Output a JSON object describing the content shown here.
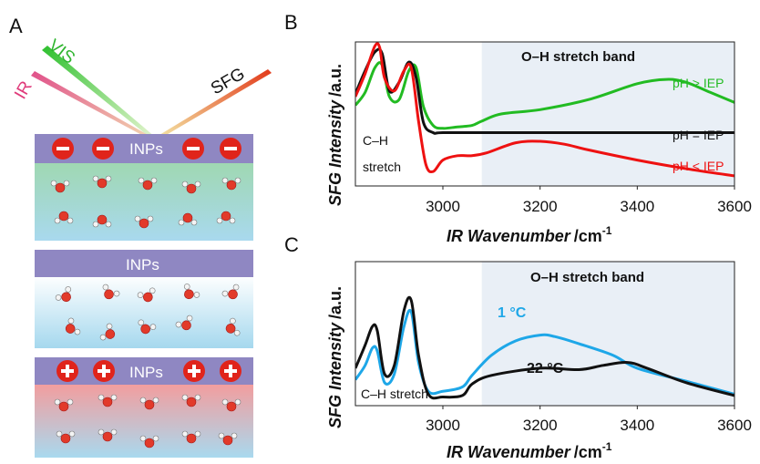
{
  "panel_a": {
    "label": "A",
    "beams": {
      "vis": "VIS",
      "ir": "IR",
      "sfg": "SFG"
    },
    "blocks": [
      {
        "label": "INPs",
        "charge": "−",
        "charge_symbol": "minus"
      },
      {
        "label": "INPs",
        "charge": "neutral",
        "charge_symbol": "none"
      },
      {
        "label": "INPs",
        "charge": "+",
        "charge_symbol": "plus"
      }
    ],
    "colors": {
      "inp_bar": "#8f87c2",
      "neg_water": "#9fd8b8",
      "neutral_water": "#b9e0ef",
      "pos_water": "#f4a9a9",
      "charge_circle": "#e0241b"
    }
  },
  "panel_b": {
    "label": "B",
    "band_label": "O–H stretch band",
    "ch_label_line1": "C–H",
    "ch_label_line2": "stretch"
  },
  "panel_c": {
    "label": "C",
    "band_label": "O–H stretch band",
    "ch_label": "C–H stretch"
  },
  "chart_data": [
    {
      "type": "line",
      "panel": "B",
      "ylabel_main": "SFG Intensity",
      "ylabel_unit": "/a.u.",
      "xlabel_main": "IR Wavenumber",
      "xlabel_unit": "/cm",
      "xlabel_sup": "-1",
      "xlim": [
        2820,
        3600
      ],
      "ylim": [
        0,
        1
      ],
      "xticks": [
        3000,
        3200,
        3400,
        3600
      ],
      "shaded_region": [
        3080,
        3600
      ],
      "grid": false,
      "series": [
        {
          "name": "pH > IEP",
          "color": "#22bb22",
          "x": [
            2820,
            2840,
            2860,
            2875,
            2890,
            2910,
            2930,
            2945,
            2960,
            2980,
            3000,
            3030,
            3060,
            3080,
            3120,
            3200,
            3300,
            3400,
            3460,
            3500,
            3550,
            3600
          ],
          "y": [
            0.56,
            0.65,
            0.82,
            0.84,
            0.62,
            0.6,
            0.8,
            0.82,
            0.55,
            0.42,
            0.4,
            0.41,
            0.42,
            0.45,
            0.5,
            0.53,
            0.6,
            0.71,
            0.74,
            0.72,
            0.65,
            0.58
          ]
        },
        {
          "name": "pH = IEP",
          "color": "#111111",
          "x": [
            2820,
            2840,
            2860,
            2875,
            2890,
            2910,
            2930,
            2945,
            2960,
            2980,
            3000,
            3100,
            3300,
            3500,
            3600
          ],
          "y": [
            0.64,
            0.8,
            0.93,
            0.92,
            0.66,
            0.72,
            0.86,
            0.75,
            0.44,
            0.37,
            0.37,
            0.37,
            0.37,
            0.37,
            0.37
          ]
        },
        {
          "name": "pH < IEP",
          "color": "#ee1111",
          "x": [
            2820,
            2840,
            2860,
            2870,
            2880,
            2900,
            2920,
            2935,
            2950,
            2965,
            2980,
            3000,
            3030,
            3060,
            3090,
            3150,
            3200,
            3250,
            3300,
            3400,
            3500,
            3600
          ],
          "y": [
            0.62,
            0.78,
            0.97,
            0.96,
            0.75,
            0.66,
            0.8,
            0.82,
            0.45,
            0.15,
            0.1,
            0.18,
            0.21,
            0.21,
            0.23,
            0.3,
            0.31,
            0.29,
            0.25,
            0.18,
            0.12,
            0.07
          ]
        }
      ]
    },
    {
      "type": "line",
      "panel": "C",
      "ylabel_main": "SFG Intensity",
      "ylabel_unit": "/a.u.",
      "xlabel_main": "IR Wavenumber",
      "xlabel_unit": "/cm",
      "xlabel_sup": "-1",
      "xlim": [
        2820,
        3600
      ],
      "ylim": [
        0,
        1
      ],
      "xticks": [
        3000,
        3200,
        3400,
        3600
      ],
      "shaded_region": [
        3080,
        3600
      ],
      "grid": false,
      "series": [
        {
          "name": "1 °C",
          "color": "#1ea7e8",
          "x": [
            2820,
            2840,
            2855,
            2865,
            2880,
            2900,
            2920,
            2935,
            2950,
            2970,
            3000,
            3040,
            3060,
            3100,
            3150,
            3200,
            3230,
            3280,
            3350,
            3400,
            3500,
            3600
          ],
          "y": [
            0.18,
            0.28,
            0.4,
            0.38,
            0.16,
            0.22,
            0.55,
            0.65,
            0.3,
            0.1,
            0.1,
            0.13,
            0.21,
            0.35,
            0.45,
            0.49,
            0.48,
            0.43,
            0.35,
            0.26,
            0.17,
            0.08
          ]
        },
        {
          "name": "22 °C",
          "color": "#111111",
          "x": [
            2820,
            2840,
            2855,
            2865,
            2880,
            2900,
            2920,
            2935,
            2950,
            2970,
            3000,
            3040,
            3060,
            3100,
            3200,
            3280,
            3330,
            3380,
            3420,
            3500,
            3600
          ],
          "y": [
            0.26,
            0.42,
            0.55,
            0.52,
            0.22,
            0.28,
            0.66,
            0.73,
            0.35,
            0.08,
            0.06,
            0.07,
            0.15,
            0.21,
            0.26,
            0.25,
            0.28,
            0.3,
            0.26,
            0.16,
            0.07
          ]
        }
      ]
    }
  ]
}
